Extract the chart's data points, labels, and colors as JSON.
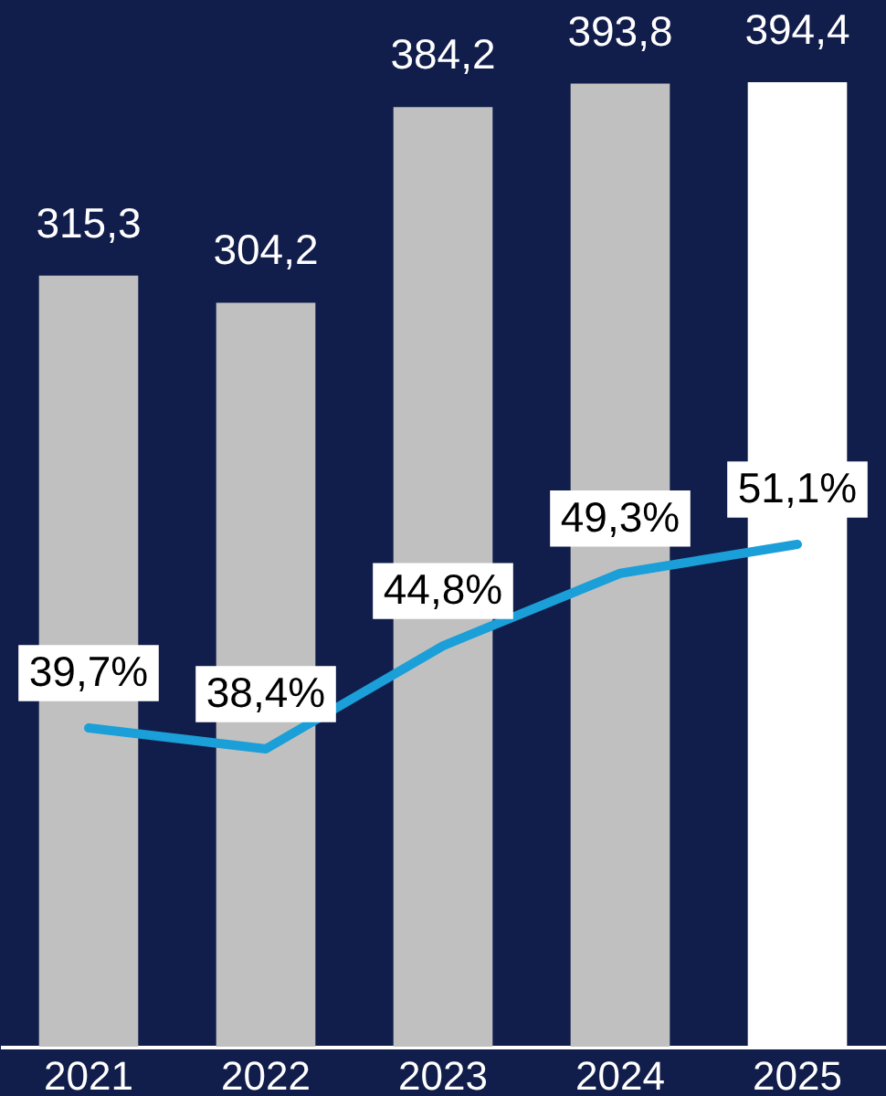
{
  "chart_data": {
    "type": "bar",
    "categories": [
      "2021",
      "2022",
      "2023",
      "2024",
      "2025"
    ],
    "ylim": [
      0,
      428
    ],
    "tick_labels": "x",
    "series": [
      {
        "values": [
          315.3,
          304.2,
          384.2,
          393.8,
          394.4
        ],
        "colors": [
          "#c0c0c0",
          "#c0c0c0",
          "#c0c0c0",
          "#c0c0c0",
          "#ffffff"
        ],
        "value_labels": [
          "315,3",
          "304,2",
          "384,2",
          "393,8",
          "394,4"
        ]
      },
      {
        "type": "line",
        "axis": "y2",
        "color": "#1a9fd9",
        "values": [
          39.7,
          38.4,
          44.8,
          49.3,
          51.1
        ],
        "value_labels": [
          "39,7%",
          "38,4%",
          "44,8%",
          "49,3%",
          "51,1%"
        ]
      }
    ]
  }
}
